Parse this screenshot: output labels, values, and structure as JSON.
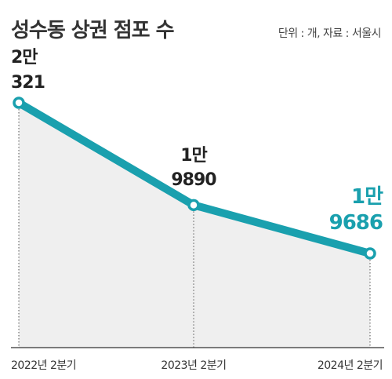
{
  "header": {
    "title": "성수동 상권 점포 수",
    "source": "단위 : 개, 자료 : 서울시"
  },
  "colors": {
    "line": "#1aa0ae",
    "area": "#efefef",
    "text": "#222222"
  },
  "chart_data": {
    "type": "line",
    "title": "성수동 상권 점포 수",
    "categories": [
      "2022년 2분기",
      "2023년 2분기",
      "2024년 2분기"
    ],
    "values": [
      20321,
      19890,
      19686
    ],
    "data_labels": [
      {
        "top": "2만",
        "bottom": "321"
      },
      {
        "top": "1만",
        "bottom": "9890"
      },
      {
        "top": "1만",
        "bottom": "9686"
      }
    ],
    "highlight_last": true
  }
}
